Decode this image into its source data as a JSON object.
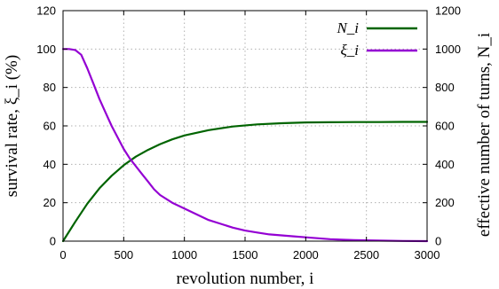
{
  "chart_data": {
    "type": "line",
    "xlabel": "revolution number, i",
    "ylabel_left": "survival rate, ξ_i (%)",
    "ylabel_right": "effective number of turns, N_i",
    "xlim": [
      0,
      3000
    ],
    "ylim_left": [
      0,
      120
    ],
    "ylim_right": [
      0,
      1200
    ],
    "x_ticks": [
      0,
      500,
      1000,
      1500,
      2000,
      2500,
      3000
    ],
    "y_left_ticks": [
      0,
      20,
      40,
      60,
      80,
      100,
      120
    ],
    "y_right_ticks": [
      0,
      200,
      400,
      600,
      800,
      1000,
      1200
    ],
    "grid": true,
    "legend_position": "top-right",
    "series": [
      {
        "name": "N_i",
        "axis": "right",
        "color": "#006400",
        "x": [
          0,
          100,
          200,
          300,
          400,
          500,
          600,
          700,
          800,
          900,
          1000,
          1200,
          1400,
          1600,
          1800,
          2000,
          2200,
          2400,
          2600,
          2800,
          3000
        ],
        "y": [
          0,
          100,
          195,
          275,
          340,
          395,
          440,
          475,
          505,
          530,
          550,
          578,
          597,
          608,
          614,
          618,
          619,
          620,
          620,
          621,
          621
        ]
      },
      {
        "name": "ξ_i",
        "axis": "left",
        "color": "#9400d3",
        "x": [
          0,
          50,
          100,
          150,
          200,
          250,
          300,
          350,
          400,
          450,
          500,
          550,
          600,
          650,
          700,
          750,
          800,
          900,
          1000,
          1100,
          1200,
          1300,
          1400,
          1500,
          1600,
          1700,
          1800,
          1900,
          2000,
          2200,
          2400,
          2600,
          2800,
          3000
        ],
        "y": [
          100,
          100,
          99.5,
          97,
          90,
          82,
          74,
          67,
          60,
          54,
          48,
          43,
          39,
          35,
          31,
          27,
          24,
          20,
          17,
          14,
          11,
          9,
          7,
          5.5,
          4.5,
          3.5,
          3,
          2.5,
          2,
          1,
          0.5,
          0.3,
          0.1,
          0
        ]
      }
    ]
  }
}
